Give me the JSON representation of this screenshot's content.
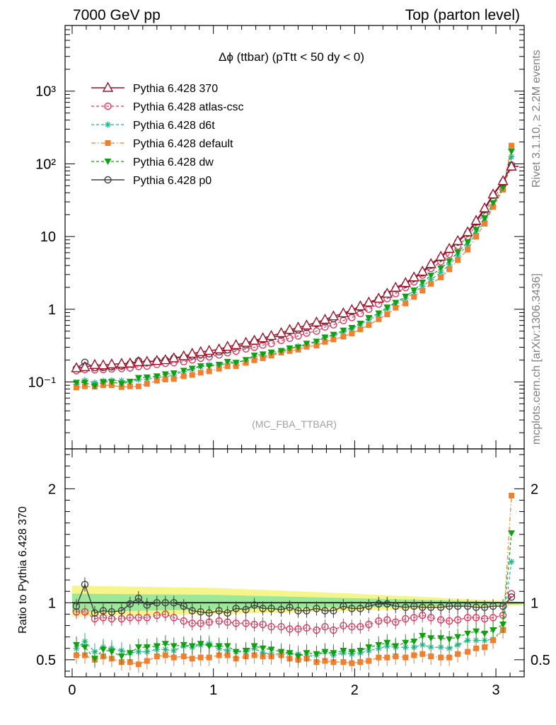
{
  "header": {
    "left": "7000 GeV pp",
    "right": "Top (parton level)"
  },
  "side": {
    "rivet": "Rivet 3.1.10, ≥ 2.2M events",
    "mcplots": "mcplots.cern.ch [arXiv:1306.3436]"
  },
  "watermark": "(MC_FBA_TTBAR)",
  "colors": {
    "p370": "#a0102a",
    "atlas": "#e8335a",
    "d6t": "#1dbb8c",
    "default": "#f07f30",
    "dw": "#10a010",
    "p0": "#404040",
    "band_yellow": "#f5f58a",
    "band_green": "#9be89b"
  },
  "chart_data": [
    {
      "type": "line",
      "title": "Δϕ (ttbar) (pTtt < 50 dy < 0)",
      "xlim": [
        -0.05,
        3.2
      ],
      "ylim": [
        0.012,
        8000
      ],
      "log_y": true,
      "y_ticks": [
        "10⁻¹",
        "1",
        "10",
        "10²",
        "10³"
      ],
      "y_tick_values": [
        0.1,
        1,
        10,
        100,
        1000
      ],
      "legend_position": "top-left",
      "x": [
        0.03,
        0.09,
        0.16,
        0.22,
        0.28,
        0.35,
        0.41,
        0.47,
        0.53,
        0.6,
        0.66,
        0.72,
        0.79,
        0.85,
        0.91,
        0.97,
        1.04,
        1.1,
        1.16,
        1.23,
        1.29,
        1.35,
        1.41,
        1.48,
        1.54,
        1.6,
        1.66,
        1.73,
        1.79,
        1.85,
        1.92,
        1.98,
        2.04,
        2.1,
        2.17,
        2.23,
        2.29,
        2.36,
        2.42,
        2.48,
        2.54,
        2.61,
        2.67,
        2.73,
        2.8,
        2.86,
        2.92,
        2.98,
        3.05,
        3.11
      ],
      "series": [
        {
          "name": "Pythia 6.428 370",
          "key": "p370",
          "marker": "triangle-open",
          "values": [
            0.155,
            0.16,
            0.172,
            0.17,
            0.175,
            0.178,
            0.18,
            0.188,
            0.19,
            0.195,
            0.2,
            0.212,
            0.226,
            0.245,
            0.258,
            0.268,
            0.281,
            0.305,
            0.322,
            0.346,
            0.37,
            0.4,
            0.43,
            0.47,
            0.52,
            0.56,
            0.6,
            0.66,
            0.72,
            0.8,
            0.88,
            0.98,
            1.1,
            1.24,
            1.4,
            1.64,
            1.98,
            2.3,
            2.75,
            3.3,
            4.2,
            5.3,
            6.8,
            8.7,
            11.5,
            16.5,
            24.5,
            38,
            58,
            92
          ]
        },
        {
          "name": "Pythia 6.428 atlas-csc",
          "key": "atlas",
          "marker": "circle-open",
          "values": [
            0.143,
            0.148,
            0.147,
            0.148,
            0.151,
            0.153,
            0.156,
            0.163,
            0.165,
            0.174,
            0.18,
            0.184,
            0.19,
            0.201,
            0.212,
            0.222,
            0.235,
            0.252,
            0.265,
            0.285,
            0.3,
            0.322,
            0.338,
            0.372,
            0.398,
            0.43,
            0.47,
            0.5,
            0.57,
            0.61,
            0.7,
            0.77,
            0.87,
            1.0,
            1.18,
            1.4,
            1.64,
            1.99,
            2.38,
            2.95,
            3.65,
            4.5,
            5.7,
            7.4,
            10.0,
            14.3,
            21.0,
            33.0,
            51.5,
            90
          ]
        },
        {
          "name": "Pythia 6.428 d6t",
          "key": "d6t",
          "marker": "star",
          "values": [
            0.093,
            0.105,
            0.098,
            0.103,
            0.105,
            0.104,
            0.1,
            0.108,
            0.109,
            0.115,
            0.118,
            0.124,
            0.139,
            0.15,
            0.163,
            0.173,
            0.17,
            0.178,
            0.183,
            0.198,
            0.224,
            0.224,
            0.238,
            0.258,
            0.289,
            0.31,
            0.318,
            0.356,
            0.409,
            0.435,
            0.49,
            0.54,
            0.619,
            0.72,
            0.834,
            1.01,
            1.2,
            1.4,
            1.69,
            2.07,
            2.56,
            3.21,
            4.1,
            5.45,
            7.65,
            11.0,
            16.3,
            26.0,
            44.5,
            125
          ]
        },
        {
          "name": "Pythia 6.428 default",
          "key": "default",
          "marker": "square",
          "values": [
            0.084,
            0.087,
            0.086,
            0.09,
            0.09,
            0.085,
            0.087,
            0.087,
            0.094,
            0.104,
            0.108,
            0.11,
            0.12,
            0.125,
            0.134,
            0.14,
            0.152,
            0.165,
            0.165,
            0.183,
            0.199,
            0.212,
            0.23,
            0.253,
            0.266,
            0.278,
            0.305,
            0.316,
            0.356,
            0.384,
            0.42,
            0.465,
            0.53,
            0.607,
            0.73,
            0.85,
            1.05,
            1.2,
            1.48,
            1.8,
            2.24,
            2.74,
            3.54,
            4.75,
            6.6,
            9.95,
            15.0,
            25.5,
            44.0,
            178
          ]
        },
        {
          "name": "Pythia 6.428 dw",
          "key": "dw",
          "marker": "triangle-down",
          "values": [
            0.098,
            0.098,
            0.088,
            0.1,
            0.1,
            0.094,
            0.101,
            0.114,
            0.116,
            0.12,
            0.128,
            0.132,
            0.143,
            0.153,
            0.165,
            0.165,
            0.173,
            0.19,
            0.184,
            0.201,
            0.231,
            0.24,
            0.255,
            0.268,
            0.291,
            0.299,
            0.337,
            0.36,
            0.41,
            0.448,
            0.51,
            0.556,
            0.635,
            0.76,
            0.88,
            1.06,
            1.23,
            1.5,
            1.82,
            2.34,
            2.91,
            3.65,
            4.6,
            6.05,
            8.4,
            12.4,
            17.9,
            29.0,
            47.0,
            148
          ]
        },
        {
          "name": "Pythia 6.428 p0",
          "key": "p0",
          "marker": "circle-open",
          "values": [
            0.153,
            0.186,
            0.157,
            0.158,
            0.161,
            0.165,
            0.178,
            0.195,
            0.186,
            0.195,
            0.2,
            0.212,
            0.22,
            0.228,
            0.237,
            0.244,
            0.26,
            0.277,
            0.305,
            0.325,
            0.362,
            0.38,
            0.41,
            0.44,
            0.5,
            0.52,
            0.56,
            0.63,
            0.67,
            0.74,
            0.85,
            0.93,
            1.04,
            1.2,
            1.38,
            1.63,
            1.92,
            2.2,
            2.66,
            3.16,
            4.02,
            5.1,
            6.6,
            8.4,
            11.1,
            15.8,
            23.4,
            36.9,
            56.0,
            96
          ]
        }
      ]
    },
    {
      "type": "line",
      "ylabel": "Ratio to Pythia 6.428 370",
      "xlim": [
        -0.05,
        3.2
      ],
      "ylim": [
        0.35,
        2.35
      ],
      "x_ticks": [
        "0",
        "1",
        "2",
        "3"
      ],
      "x_tick_values": [
        0,
        1,
        2,
        3
      ],
      "y_ticks": [
        "0.5",
        "1",
        "2"
      ],
      "y_tick_values": [
        0.5,
        1,
        2
      ],
      "band_yellow": [
        [
          0.0,
          0.88,
          1.15
        ],
        [
          1.0,
          0.9,
          1.13
        ],
        [
          2.0,
          0.93,
          1.08
        ],
        [
          3.0,
          0.97,
          1.02
        ],
        [
          3.2,
          0.98,
          1.01
        ]
      ],
      "band_green": [
        [
          0.0,
          0.92,
          1.08
        ],
        [
          1.0,
          0.94,
          1.07
        ],
        [
          2.0,
          0.96,
          1.04
        ],
        [
          3.0,
          0.98,
          1.01
        ],
        [
          3.2,
          0.99,
          1.005
        ]
      ],
      "series": [
        {
          "name": "Pythia 6.428 atlas-csc",
          "key": "atlas",
          "values": [
            0.92,
            0.92,
            0.86,
            0.87,
            0.86,
            0.86,
            0.87,
            0.87,
            0.87,
            0.89,
            0.9,
            0.87,
            0.84,
            0.82,
            0.82,
            0.83,
            0.84,
            0.83,
            0.82,
            0.82,
            0.81,
            0.81,
            0.79,
            0.79,
            0.77,
            0.77,
            0.78,
            0.76,
            0.79,
            0.76,
            0.8,
            0.79,
            0.79,
            0.81,
            0.84,
            0.85,
            0.83,
            0.86,
            0.87,
            0.89,
            0.87,
            0.85,
            0.84,
            0.85,
            0.87,
            0.87,
            0.86,
            0.87,
            0.89,
            1.08
          ]
        },
        {
          "name": "Pythia 6.428 d6t",
          "key": "d6t",
          "values": [
            0.6,
            0.66,
            0.57,
            0.61,
            0.6,
            0.58,
            0.56,
            0.57,
            0.57,
            0.59,
            0.59,
            0.58,
            0.62,
            0.61,
            0.63,
            0.64,
            0.6,
            0.58,
            0.57,
            0.57,
            0.6,
            0.56,
            0.55,
            0.55,
            0.56,
            0.55,
            0.53,
            0.54,
            0.57,
            0.54,
            0.56,
            0.55,
            0.56,
            0.58,
            0.6,
            0.62,
            0.61,
            0.61,
            0.61,
            0.63,
            0.61,
            0.61,
            0.6,
            0.63,
            0.67,
            0.67,
            0.67,
            0.68,
            0.77,
            1.36
          ]
        },
        {
          "name": "Pythia 6.428 default",
          "key": "default",
          "values": [
            0.54,
            0.54,
            0.5,
            0.53,
            0.51,
            0.48,
            0.48,
            0.46,
            0.49,
            0.53,
            0.54,
            0.52,
            0.53,
            0.51,
            0.52,
            0.52,
            0.54,
            0.54,
            0.51,
            0.53,
            0.54,
            0.53,
            0.53,
            0.54,
            0.51,
            0.5,
            0.51,
            0.48,
            0.49,
            0.48,
            0.48,
            0.47,
            0.48,
            0.49,
            0.52,
            0.52,
            0.53,
            0.52,
            0.54,
            0.55,
            0.53,
            0.52,
            0.52,
            0.55,
            0.57,
            0.6,
            0.61,
            0.67,
            0.76,
            1.94
          ]
        },
        {
          "name": "Pythia 6.428 dw",
          "key": "dw",
          "values": [
            0.63,
            0.61,
            0.51,
            0.59,
            0.57,
            0.53,
            0.56,
            0.61,
            0.61,
            0.62,
            0.64,
            0.62,
            0.63,
            0.62,
            0.64,
            0.62,
            0.62,
            0.62,
            0.57,
            0.58,
            0.62,
            0.6,
            0.59,
            0.57,
            0.56,
            0.53,
            0.56,
            0.55,
            0.57,
            0.56,
            0.58,
            0.57,
            0.58,
            0.61,
            0.63,
            0.65,
            0.62,
            0.65,
            0.66,
            0.71,
            0.69,
            0.69,
            0.68,
            0.7,
            0.73,
            0.75,
            0.73,
            0.76,
            0.81,
            1.61
          ]
        },
        {
          "name": "Pythia 6.428 p0",
          "key": "p0",
          "values": [
            0.97,
            1.16,
            0.91,
            0.93,
            0.92,
            0.93,
            0.99,
            1.04,
            0.98,
            1.0,
            1.0,
            1.0,
            0.97,
            0.93,
            0.92,
            0.91,
            0.93,
            0.91,
            0.95,
            0.94,
            0.98,
            0.95,
            0.95,
            0.94,
            0.96,
            0.93,
            0.93,
            0.95,
            0.93,
            0.93,
            0.97,
            0.95,
            0.95,
            0.97,
            0.99,
            0.99,
            0.97,
            0.96,
            0.97,
            0.96,
            0.96,
            0.96,
            0.97,
            0.97,
            0.97,
            0.96,
            0.96,
            0.97,
            0.97,
            1.05
          ]
        }
      ]
    }
  ]
}
